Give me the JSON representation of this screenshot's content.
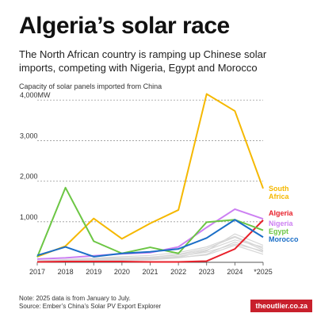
{
  "title": "Algeria’s solar race",
  "subtitle": "The North African country is ramping up Chinese solar imports, competing with Nigeria, Egypt and Morocco",
  "chart_label": "Capacity of solar panels imported from China",
  "footer": {
    "note": "Note: 2025 data is from January to July.",
    "source": "Source: Ember’s China’s Solar PV Export Explorer"
  },
  "brand": "theoutlier.co.za",
  "chart_data": {
    "type": "line",
    "x": [
      "2017",
      "2018",
      "2019",
      "2020",
      "2021",
      "2022",
      "2023",
      "2024",
      "*2025"
    ],
    "ylim": [
      0,
      4200
    ],
    "yticks": [
      {
        "value": 1000,
        "label": "1,000"
      },
      {
        "value": 2000,
        "label": "2,000"
      },
      {
        "value": 3000,
        "label": "3,000"
      },
      {
        "value": 4000,
        "label": "4,000MW"
      }
    ],
    "grid": true,
    "series": [
      {
        "name": "South Africa",
        "color": "#f5b800",
        "values": [
          140,
          400,
          1080,
          580,
          960,
          1290,
          4150,
          3730,
          1820
        ]
      },
      {
        "name": "Algeria",
        "color": "#e8202a",
        "values": [
          10,
          20,
          20,
          20,
          10,
          10,
          30,
          330,
          1040
        ]
      },
      {
        "name": "Nigeria",
        "color": "#cc80f2",
        "values": [
          80,
          110,
          160,
          210,
          240,
          380,
          860,
          1310,
          1070
        ]
      },
      {
        "name": "Egypt",
        "color": "#6cc644",
        "values": [
          130,
          1840,
          520,
          220,
          370,
          220,
          990,
          1050,
          790
        ]
      },
      {
        "name": "Morocco",
        "color": "#1a6ec7",
        "values": [
          170,
          380,
          140,
          220,
          260,
          330,
          600,
          1050,
          620
        ]
      }
    ],
    "background_series": [
      {
        "values": [
          20,
          60,
          90,
          110,
          130,
          180,
          300,
          550,
          380
        ]
      },
      {
        "values": [
          10,
          40,
          70,
          90,
          120,
          200,
          340,
          620,
          300
        ]
      },
      {
        "values": [
          30,
          50,
          60,
          80,
          100,
          150,
          250,
          450,
          280
        ]
      },
      {
        "values": [
          15,
          30,
          40,
          70,
          90,
          130,
          280,
          700,
          420
        ]
      },
      {
        "values": [
          5,
          20,
          30,
          50,
          60,
          110,
          200,
          500,
          250
        ]
      },
      {
        "values": [
          40,
          70,
          100,
          140,
          170,
          240,
          380,
          640,
          340
        ]
      },
      {
        "values": [
          25,
          45,
          55,
          60,
          80,
          120,
          180,
          420,
          200
        ]
      }
    ]
  }
}
